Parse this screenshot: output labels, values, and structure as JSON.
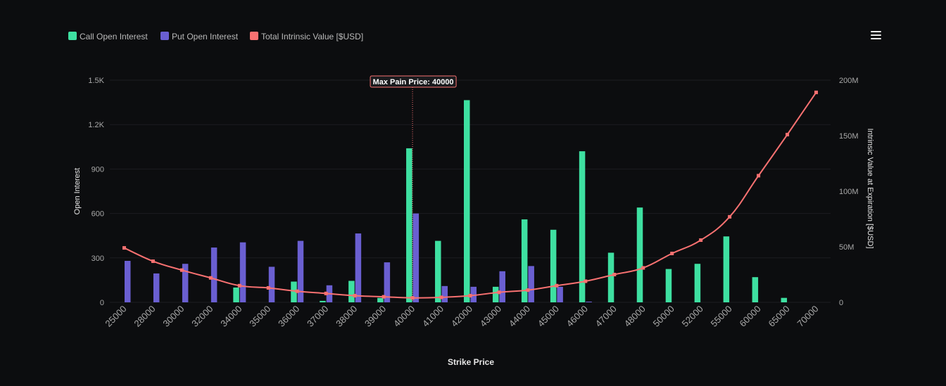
{
  "menu": {
    "icon": "hamburger-menu-icon"
  },
  "colors": {
    "background": "#0c0d0f",
    "call": "#3ee0a1",
    "put": "#6a5fd1",
    "intrinsic": "#f87171",
    "gridline": "#1b1d20",
    "annotation_border": "#f87171",
    "annotation_line": "#f87171"
  },
  "chart_data": {
    "type": "bar",
    "title": "",
    "xlabel": "Strike Price",
    "ylabel": "Open Interest",
    "y2label": "Intrinsic Value at Expiration [$USD]",
    "categories": [
      "25000",
      "28000",
      "30000",
      "32000",
      "34000",
      "35000",
      "36000",
      "37000",
      "38000",
      "39000",
      "40000",
      "41000",
      "42000",
      "43000",
      "44000",
      "45000",
      "46000",
      "47000",
      "48000",
      "50000",
      "52000",
      "55000",
      "60000",
      "65000",
      "70000"
    ],
    "y_ticks": [
      "0",
      "300",
      "600",
      "900",
      "1.2K",
      "1.5K"
    ],
    "y_tick_values": [
      0,
      300,
      600,
      900,
      1200,
      1500
    ],
    "ylim": [
      0,
      1500
    ],
    "y2_ticks": [
      "0",
      "50M",
      "100M",
      "150M",
      "200M"
    ],
    "y2_tick_values": [
      0,
      50,
      100,
      150,
      200
    ],
    "y2lim": [
      0,
      200
    ],
    "grid": true,
    "legend_position": "top-left",
    "series": [
      {
        "name": "Call Open Interest",
        "type": "bar",
        "values": [
          0,
          0,
          0,
          0,
          100,
          0,
          140,
          10,
          145,
          30,
          1040,
          415,
          1365,
          105,
          560,
          490,
          1020,
          335,
          640,
          225,
          260,
          445,
          170,
          30,
          0
        ]
      },
      {
        "name": "Put Open Interest",
        "type": "bar",
        "values": [
          280,
          195,
          260,
          370,
          405,
          240,
          415,
          115,
          465,
          270,
          600,
          110,
          105,
          210,
          245,
          105,
          5,
          0,
          0,
          0,
          0,
          0,
          0,
          0,
          0
        ]
      },
      {
        "name": "Total Intrinsic Value [$USD]",
        "type": "line",
        "axis": "right",
        "unit": "M",
        "values": [
          49,
          37,
          29,
          22,
          15,
          13,
          10,
          8,
          6,
          5,
          4,
          4.5,
          6,
          9,
          11,
          15,
          19,
          25,
          31,
          44,
          56,
          77,
          114,
          151,
          189
        ]
      }
    ],
    "annotations": [
      {
        "text": "Max Pain Price: 40000",
        "x": "40000"
      }
    ]
  }
}
